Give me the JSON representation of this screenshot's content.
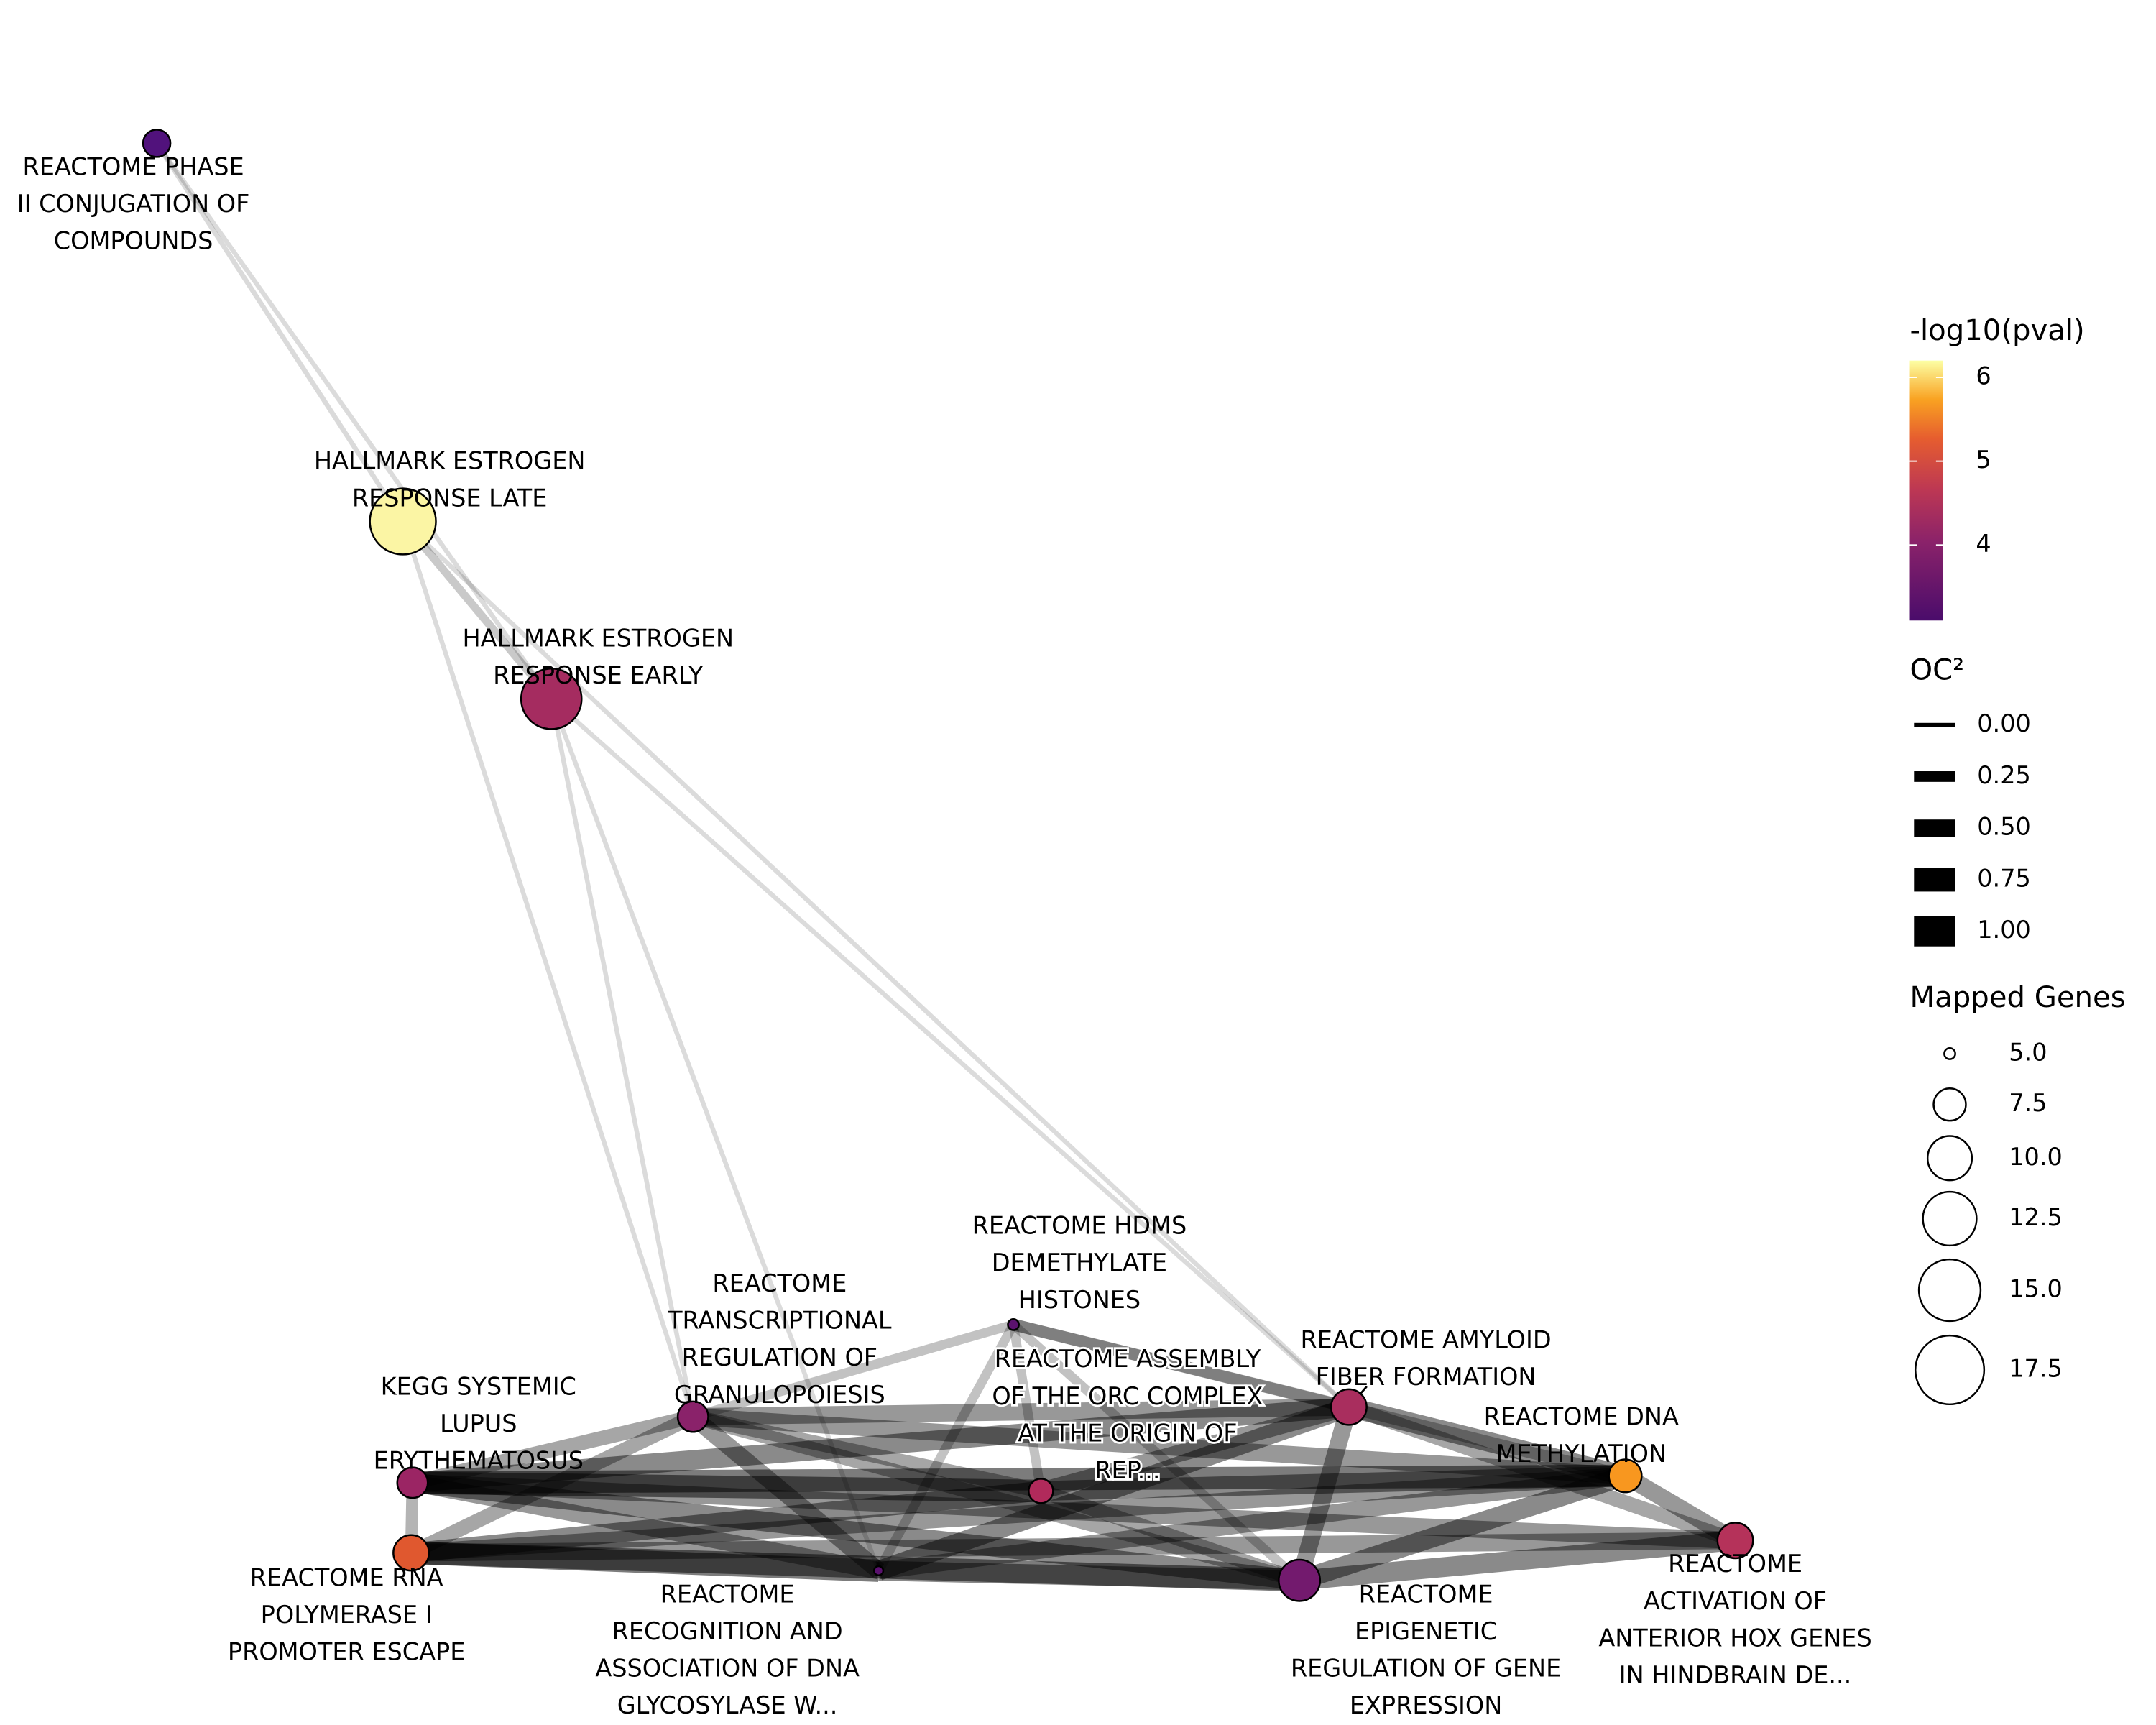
{
  "nodes": [
    {
      "label": [
        "REACTOME PHASE",
        "II CONJUGATION OF",
        "COMPOUNDS"
      ],
      "color": "#51127c",
      "size": 6.7
    },
    {
      "label": [
        "HALLMARK ESTROGEN",
        "RESPONSE LATE"
      ],
      "color": "#fbf5a4",
      "size": 16.5
    },
    {
      "label": [
        "HALLMARK ESTROGEN",
        "RESPONSE EARLY"
      ],
      "color": "#a52c60",
      "size": 14.6
    },
    {
      "label": [
        "KEGG SYSTEMIC",
        "LUPUS",
        "ERYTHEMATOSUS"
      ],
      "color": "#9b2564",
      "size": 7.2
    },
    {
      "label": [
        "REACTOME RNA",
        "POLYMERASE I",
        "PROMOTER ESCAPE"
      ],
      "color": "#e0582f",
      "size": 8.1
    },
    {
      "label": [
        "REACTOME",
        "TRANSCRIPTIONAL",
        "REGULATION OF",
        "GRANULOPOIESIS"
      ],
      "color": "#8a226a",
      "size": 7.2
    },
    {
      "label": [
        "REACTOME HDMS",
        "DEMETHYLATE",
        "HISTONES"
      ],
      "color": "#5c126e",
      "size": 5
    },
    {
      "label": [
        "REACTOME ASSEMBLY",
        "OF THE ORC COMPLEX",
        "AT THE ORIGIN OF",
        "REP..."
      ],
      "color": "#b12a5b",
      "size": 6.3
    },
    {
      "label": [
        "REACTOME",
        "RECOGNITION AND",
        "ASSOCIATION OF DNA",
        "GLYCOSYLASE W..."
      ],
      "color": "#5a116e",
      "size": 4.9
    },
    {
      "label": [
        "REACTOME AMYLOID",
        "FIBER FORMATION"
      ],
      "color": "#a92e5e",
      "size": 8.1
    },
    {
      "label": [
        "REACTOME",
        "EPIGENETIC",
        "REGULATION OF GENE",
        "EXPRESSION"
      ],
      "color": "#731a6e",
      "size": 9.3
    },
    {
      "label": [
        "REACTOME DNA",
        "METHYLATION"
      ],
      "color": "#f8971f",
      "size": 7.6
    },
    {
      "label": [
        "REACTOME",
        "ACTIVATION OF",
        "ANTERIOR HOX GENES",
        "IN HINDBRAIN DE..."
      ],
      "color": "#b5325a",
      "size": 8.1
    }
  ],
  "edges": [
    [
      0,
      1,
      0.03
    ],
    [
      0,
      2,
      0.02
    ],
    [
      1,
      2,
      0.15
    ],
    [
      1,
      5,
      0.02
    ],
    [
      2,
      5,
      0.02
    ],
    [
      2,
      8,
      0.02
    ],
    [
      2,
      9,
      0.02
    ],
    [
      1,
      9,
      0.02
    ],
    [
      3,
      4,
      0.3
    ],
    [
      3,
      5,
      0.4
    ],
    [
      3,
      7,
      0.7
    ],
    [
      3,
      8,
      0.5
    ],
    [
      3,
      9,
      0.6
    ],
    [
      3,
      10,
      0.6
    ],
    [
      3,
      11,
      0.7
    ],
    [
      3,
      12,
      0.5
    ],
    [
      4,
      5,
      0.4
    ],
    [
      4,
      7,
      0.6
    ],
    [
      4,
      8,
      0.7
    ],
    [
      4,
      10,
      0.7
    ],
    [
      4,
      11,
      0.5
    ],
    [
      4,
      12,
      0.5
    ],
    [
      5,
      6,
      0.2
    ],
    [
      5,
      7,
      0.4
    ],
    [
      5,
      8,
      0.5
    ],
    [
      5,
      9,
      0.5
    ],
    [
      5,
      10,
      0.4
    ],
    [
      5,
      11,
      0.5
    ],
    [
      6,
      7,
      0.2
    ],
    [
      6,
      8,
      0.2
    ],
    [
      6,
      9,
      0.3
    ],
    [
      6,
      10,
      0.2
    ],
    [
      6,
      11,
      0.3
    ],
    [
      7,
      9,
      0.5
    ],
    [
      7,
      10,
      0.4
    ],
    [
      7,
      11,
      0.6
    ],
    [
      8,
      9,
      0.6
    ],
    [
      8,
      10,
      0.6
    ],
    [
      8,
      11,
      0.5
    ],
    [
      9,
      10,
      0.5
    ],
    [
      9,
      11,
      0.6
    ],
    [
      9,
      12,
      0.4
    ],
    [
      10,
      11,
      0.6
    ],
    [
      10,
      12,
      0.6
    ],
    [
      11,
      12,
      0.5
    ]
  ],
  "legend": {
    "color": {
      "title": "-log10(pval)",
      "lim": [
        3.1,
        6.2
      ],
      "ticks": [
        4,
        5,
        6
      ]
    },
    "width": {
      "title": "OC²",
      "ticks": [
        {
          "value": 0,
          "label": "0.00"
        },
        {
          "value": 0.25,
          "label": "0.25"
        },
        {
          "value": 0.5,
          "label": "0.50"
        },
        {
          "value": 0.75,
          "label": "0.75"
        },
        {
          "value": 1,
          "label": "1.00"
        }
      ]
    },
    "size": {
      "title": "Mapped Genes",
      "ticks": [
        {
          "value": 5,
          "label": "5.0"
        },
        7.5,
        {
          "value": 10,
          "label": "10.0"
        },
        12.5,
        {
          "value": 15,
          "label": "15.0"
        },
        17.5
      ]
    }
  }
}
